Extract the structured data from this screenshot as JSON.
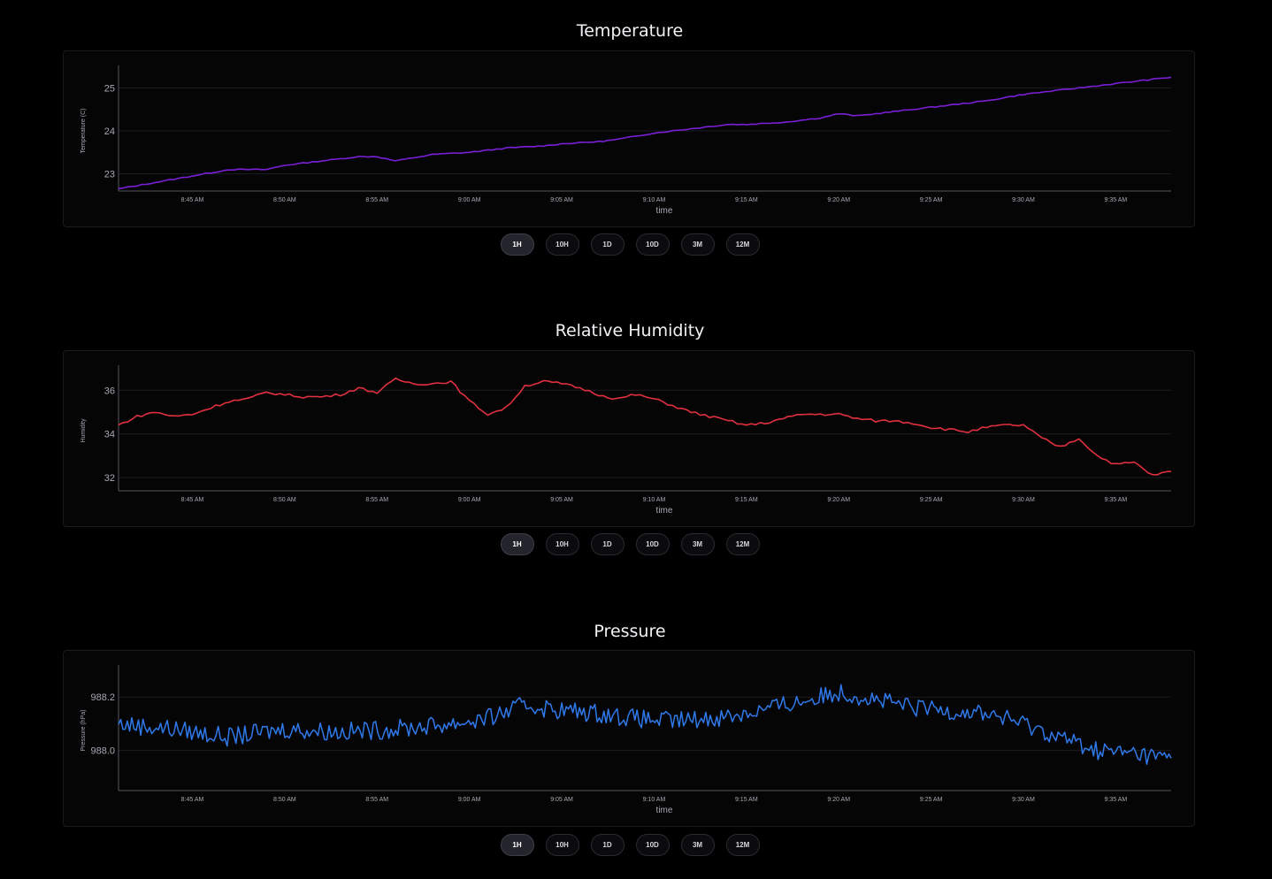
{
  "charts": [
    {
      "title": "Temperature",
      "ylabel": "Temperature (C)",
      "xlabel": "time",
      "color": "#7a1fd6",
      "ranges": [
        "1H",
        "10H",
        "1D",
        "10D",
        "3M",
        "12M"
      ],
      "active_range": "1H"
    },
    {
      "title": "Relative Humidity",
      "ylabel": "Humidity",
      "xlabel": "time",
      "color": "#e0303f",
      "ranges": [
        "1H",
        "10H",
        "1D",
        "10D",
        "3M",
        "12M"
      ],
      "active_range": "1H"
    },
    {
      "title": "Pressure",
      "ylabel": "Pressure (hPa)",
      "xlabel": "time",
      "color": "#2f79ea",
      "ranges": [
        "1H",
        "10H",
        "1D",
        "10D",
        "3M",
        "12M"
      ],
      "active_range": "1H"
    }
  ],
  "chart_data": [
    {
      "type": "line",
      "title": "Temperature",
      "xlabel": "time",
      "ylabel": "Temperature (C)",
      "x_ticks": [
        "8:45 AM",
        "8:50 AM",
        "8:55 AM",
        "9:00 AM",
        "9:05 AM",
        "9:10 AM",
        "9:15 AM",
        "9:20 AM",
        "9:25 AM",
        "9:30 AM",
        "9:35 AM"
      ],
      "y_ticks": [
        "23",
        "24",
        "25"
      ],
      "ylim": [
        22.6,
        25.4
      ],
      "xlim_minutes": [
        "8:41 AM",
        "9:38 AM"
      ],
      "grid": true,
      "series": [
        {
          "x": [
            "8:41 AM",
            "8:43 AM",
            "8:45 AM",
            "8:47 AM",
            "8:49 AM",
            "8:50 AM",
            "8:52 AM",
            "8:54 AM",
            "8:55 AM",
            "8:56 AM",
            "8:58 AM",
            "9:00 AM",
            "9:02 AM",
            "9:04 AM",
            "9:05 AM",
            "9:07 AM",
            "9:08 AM",
            "9:10 AM",
            "9:12 AM",
            "9:14 AM",
            "9:15 AM",
            "9:17 AM",
            "9:19 AM",
            "9:20 AM",
            "9:21 AM",
            "9:22 AM",
            "9:24 AM",
            "9:26 AM",
            "9:28 AM",
            "9:30 AM",
            "9:32 AM",
            "9:34 AM",
            "9:36 AM",
            "9:38 AM"
          ],
          "y": [
            22.65,
            22.8,
            22.95,
            23.1,
            23.1,
            23.2,
            23.3,
            23.4,
            23.4,
            23.3,
            23.45,
            23.5,
            23.6,
            23.65,
            23.7,
            23.75,
            23.8,
            23.95,
            24.05,
            24.15,
            24.15,
            24.2,
            24.3,
            24.4,
            24.35,
            24.4,
            24.5,
            24.6,
            24.7,
            24.85,
            24.95,
            25.05,
            25.15,
            25.25
          ]
        }
      ]
    },
    {
      "type": "line",
      "title": "Relative Humidity",
      "xlabel": "time",
      "ylabel": "Humidity",
      "x_ticks": [
        "8:45 AM",
        "8:50 AM",
        "8:55 AM",
        "9:00 AM",
        "9:05 AM",
        "9:10 AM",
        "9:15 AM",
        "9:20 AM",
        "9:25 AM",
        "9:30 AM",
        "9:35 AM"
      ],
      "y_ticks": [
        "32",
        "34",
        "36"
      ],
      "ylim": [
        31.4,
        36.9
      ],
      "grid": true,
      "series": [
        {
          "x": [
            "8:41 AM",
            "8:42 AM",
            "8:43 AM",
            "8:44 AM",
            "8:45 AM",
            "8:46 AM",
            "8:47 AM",
            "8:48 AM",
            "8:49 AM",
            "8:50 AM",
            "8:51 AM",
            "8:52 AM",
            "8:53 AM",
            "8:54 AM",
            "8:55 AM",
            "8:56 AM",
            "8:57 AM",
            "8:58 AM",
            "8:59 AM",
            "9:00 AM",
            "9:01 AM",
            "9:02 AM",
            "9:03 AM",
            "9:04 AM",
            "9:05 AM",
            "9:06 AM",
            "9:07 AM",
            "9:08 AM",
            "9:09 AM",
            "9:10 AM",
            "9:11 AM",
            "9:12 AM",
            "9:13 AM",
            "9:14 AM",
            "9:15 AM",
            "9:16 AM",
            "9:17 AM",
            "9:18 AM",
            "9:19 AM",
            "9:20 AM",
            "9:21 AM",
            "9:22 AM",
            "9:23 AM",
            "9:24 AM",
            "9:25 AM",
            "9:26 AM",
            "9:27 AM",
            "9:28 AM",
            "9:29 AM",
            "9:30 AM",
            "9:31 AM",
            "9:32 AM",
            "9:33 AM",
            "9:34 AM",
            "9:35 AM",
            "9:36 AM",
            "9:37 AM",
            "9:38 AM"
          ],
          "y": [
            34.4,
            34.8,
            35.0,
            34.8,
            34.9,
            35.2,
            35.5,
            35.6,
            35.9,
            35.8,
            35.7,
            35.7,
            35.8,
            36.1,
            35.9,
            36.5,
            36.3,
            36.3,
            36.4,
            35.5,
            34.9,
            35.2,
            36.2,
            36.4,
            36.3,
            36.1,
            35.8,
            35.6,
            35.8,
            35.6,
            35.3,
            35.0,
            34.8,
            34.6,
            34.4,
            34.5,
            34.7,
            34.9,
            34.9,
            34.9,
            34.7,
            34.6,
            34.6,
            34.5,
            34.3,
            34.2,
            34.1,
            34.3,
            34.4,
            34.4,
            33.8,
            33.4,
            33.8,
            33.0,
            32.6,
            32.7,
            32.1,
            32.3
          ]
        }
      ]
    },
    {
      "type": "line",
      "title": "Pressure",
      "xlabel": "time",
      "ylabel": "Pressure (hPa)",
      "x_ticks": [
        "8:45 AM",
        "8:50 AM",
        "8:55 AM",
        "9:00 AM",
        "9:05 AM",
        "9:10 AM",
        "9:15 AM",
        "9:20 AM",
        "9:25 AM",
        "9:30 AM",
        "9:35 AM"
      ],
      "y_ticks": [
        "988.0",
        "988.2"
      ],
      "ylim": [
        987.85,
        988.3
      ],
      "grid": true,
      "series": [
        {
          "x": [
            "8:41 AM",
            "8:44 AM",
            "8:47 AM",
            "8:50 AM",
            "8:53 AM",
            "8:56 AM",
            "8:59 AM",
            "9:01 AM",
            "9:03 AM",
            "9:05 AM",
            "9:07 AM",
            "9:09 AM",
            "9:11 AM",
            "9:13 AM",
            "9:15 AM",
            "9:17 AM",
            "9:19 AM",
            "9:20 AM",
            "9:22 AM",
            "9:24 AM",
            "9:26 AM",
            "9:28 AM",
            "9:30 AM",
            "9:32 AM",
            "9:34 AM",
            "9:36 AM",
            "9:38 AM"
          ],
          "y": [
            988.1,
            988.08,
            988.05,
            988.08,
            988.07,
            988.08,
            988.1,
            988.12,
            988.17,
            988.15,
            988.14,
            988.12,
            988.11,
            988.12,
            988.14,
            988.17,
            988.2,
            988.22,
            988.19,
            988.16,
            988.15,
            988.14,
            988.1,
            988.05,
            988.0,
            987.99,
            987.97
          ]
        }
      ]
    }
  ]
}
